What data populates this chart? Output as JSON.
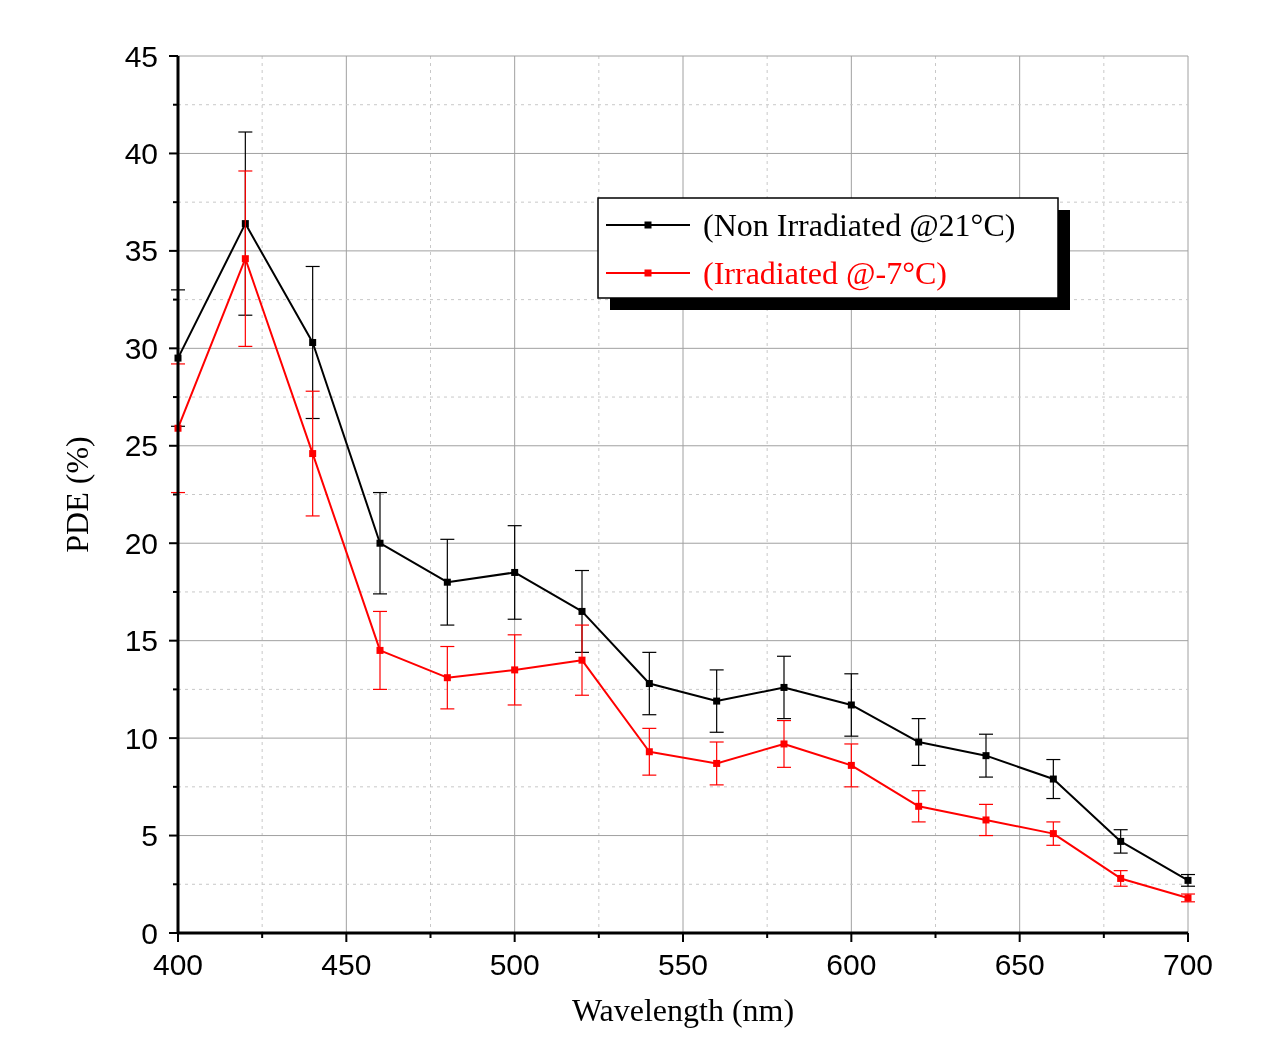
{
  "chart_data": {
    "type": "line",
    "xlabel": "Wavelength (nm)",
    "ylabel": "PDE (%)",
    "x": [
      400,
      420,
      440,
      460,
      480,
      500,
      520,
      540,
      560,
      580,
      600,
      620,
      640,
      660,
      680,
      700
    ],
    "xlim": [
      400,
      700
    ],
    "ylim": [
      0,
      45
    ],
    "xticks": [
      400,
      {
        "value": 425,
        "label": null
      },
      450,
      {
        "value": 475,
        "label": null
      },
      500,
      {
        "value": 525,
        "label": null
      },
      550,
      {
        "value": 575,
        "label": null
      },
      600,
      {
        "value": 625,
        "label": null
      },
      650,
      {
        "value": 675,
        "label": null
      },
      700
    ],
    "yticks": [
      0,
      {
        "value": 2.5,
        "label": null
      },
      5,
      {
        "value": 7.5,
        "label": null
      },
      10,
      {
        "value": 12.5,
        "label": null
      },
      15,
      {
        "value": 17.5,
        "label": null
      },
      20,
      {
        "value": 22.5,
        "label": null
      },
      25,
      {
        "value": 27.5,
        "label": null
      },
      30,
      {
        "value": 32.5,
        "label": null
      },
      35,
      {
        "value": 37.5,
        "label": null
      },
      40,
      {
        "value": 42.5,
        "label": null
      },
      45
    ],
    "grid": true,
    "legend": "top right",
    "marker": "square",
    "line_style": "solid",
    "series": [
      {
        "name": "(Non Irradiated @21°C)",
        "color": "#000000",
        "values": [
          29.5,
          36.4,
          30.3,
          20.0,
          18.0,
          18.5,
          16.5,
          12.8,
          11.9,
          12.6,
          11.7,
          9.8,
          9.1,
          7.9,
          4.7,
          2.7
        ],
        "errors": [
          3.5,
          4.7,
          3.9,
          2.6,
          2.2,
          2.4,
          2.1,
          1.6,
          1.6,
          1.6,
          1.6,
          1.2,
          1.1,
          1.0,
          0.6,
          0.3
        ]
      },
      {
        "name": "(Irradiated @-7°C)",
        "color": "#ff0000",
        "values": [
          25.9,
          34.6,
          24.6,
          14.5,
          13.1,
          13.5,
          14.0,
          9.3,
          8.7,
          9.7,
          8.6,
          6.5,
          5.8,
          5.1,
          2.8,
          1.8
        ],
        "errors": [
          3.3,
          4.5,
          3.2,
          2.0,
          1.6,
          1.8,
          1.8,
          1.2,
          1.1,
          1.2,
          1.1,
          0.8,
          0.8,
          0.6,
          0.4,
          0.2
        ]
      }
    ]
  }
}
